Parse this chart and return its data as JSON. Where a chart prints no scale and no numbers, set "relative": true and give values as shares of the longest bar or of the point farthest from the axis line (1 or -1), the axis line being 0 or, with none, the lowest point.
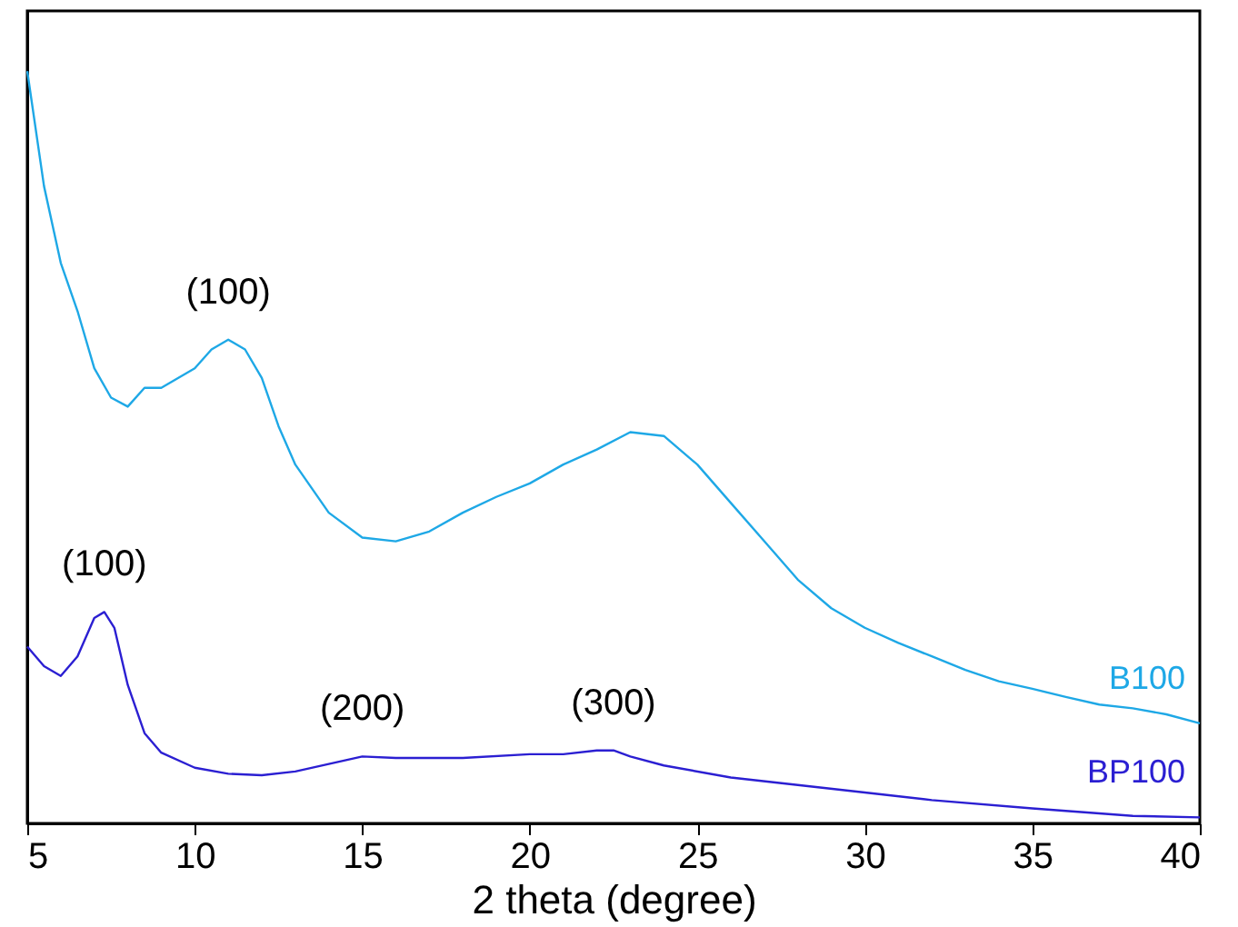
{
  "chart_data": {
    "type": "line",
    "xlabel": "2 theta (degree)",
    "relative": true,
    "tick_labels": "x",
    "grid": false,
    "legend": false,
    "marker": "none",
    "line_style": "solid",
    "xlim": [
      5,
      40
    ],
    "xticks": [
      5,
      10,
      15,
      20,
      25,
      30,
      35,
      40
    ],
    "series": [
      {
        "name": "B100",
        "color": "#1ea8e6",
        "x": [
          5,
          5.5,
          6,
          6.5,
          7,
          7.5,
          8,
          8.5,
          9,
          10,
          10.5,
          11,
          11.5,
          12,
          12.5,
          13,
          14,
          15,
          16,
          17,
          18,
          19,
          20,
          21,
          22,
          23,
          24,
          25,
          26,
          27,
          28,
          29,
          30,
          31,
          32,
          33,
          34,
          35,
          36,
          37,
          38,
          39,
          40
        ],
        "values": [
          1.0,
          0.847,
          0.745,
          0.681,
          0.605,
          0.566,
          0.554,
          0.579,
          0.579,
          0.605,
          0.63,
          0.643,
          0.63,
          0.592,
          0.528,
          0.477,
          0.413,
          0.38,
          0.375,
          0.388,
          0.413,
          0.434,
          0.452,
          0.477,
          0.497,
          0.52,
          0.515,
          0.477,
          0.426,
          0.375,
          0.324,
          0.286,
          0.26,
          0.24,
          0.222,
          0.204,
          0.189,
          0.179,
          0.168,
          0.158,
          0.153,
          0.145,
          0.133
        ]
      },
      {
        "name": "BP100",
        "color": "#2b1fd2",
        "x": [
          5,
          5.5,
          6,
          6.5,
          7,
          7.3,
          7.6,
          8,
          8.5,
          9,
          10,
          11,
          12,
          13,
          14,
          15,
          16,
          18,
          20,
          21,
          22,
          22.5,
          23,
          24,
          26,
          28,
          30,
          32,
          35,
          38,
          40
        ],
        "values": [
          0.235,
          0.209,
          0.196,
          0.222,
          0.273,
          0.281,
          0.26,
          0.184,
          0.12,
          0.094,
          0.074,
          0.066,
          0.064,
          0.069,
          0.079,
          0.089,
          0.087,
          0.087,
          0.092,
          0.092,
          0.097,
          0.097,
          0.089,
          0.077,
          0.061,
          0.051,
          0.041,
          0.031,
          0.02,
          0.01,
          0.008
        ]
      }
    ],
    "annotations": [
      {
        "text": "(100)",
        "x": 11,
        "y": 0.643
      },
      {
        "text": "(100)",
        "x": 7.3,
        "y": 0.281
      },
      {
        "text": "(200)",
        "x": 15,
        "y": 0.089
      },
      {
        "text": "(300)",
        "x": 22.5,
        "y": 0.097
      }
    ]
  }
}
